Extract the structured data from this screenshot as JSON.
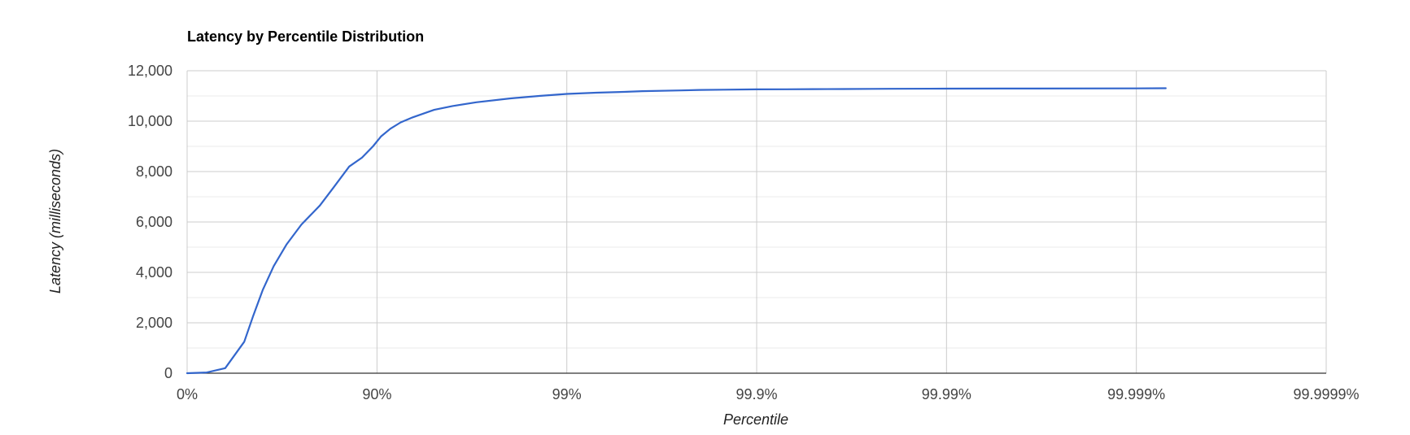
{
  "chart_data": {
    "type": "line",
    "title": "Latency by Percentile Distribution",
    "xlabel": "Percentile",
    "ylabel": "Latency (milliseconds)",
    "x_scale": "log-percentile",
    "x_ticks": [
      "0%",
      "90%",
      "99%",
      "99.9%",
      "99.99%",
      "99.999%",
      "99.9999%"
    ],
    "y_ticks": [
      "0",
      "2,000",
      "4,000",
      "6,000",
      "8,000",
      "10,000",
      "12,000"
    ],
    "ylim": [
      0,
      12000
    ],
    "grid": true,
    "legend": "none",
    "line_color": "#3366cc",
    "series": [
      {
        "x": [
          0,
          21,
          37,
          50,
          55,
          60,
          65,
          70,
          75,
          80,
          83,
          86,
          88,
          89.5,
          90.5,
          91.5,
          92.5,
          93.5,
          95,
          96,
          97,
          98,
          98.6,
          99,
          99.3,
          99.5,
          99.6,
          99.75,
          99.8,
          99.85,
          99.9,
          99.93,
          99.95,
          99.965,
          99.975,
          99.98,
          99.99,
          99.995,
          99.999,
          99.9993
        ],
        "values": [
          0,
          30,
          200,
          1250,
          2250,
          3300,
          4250,
          5100,
          5900,
          6650,
          7350,
          8200,
          8550,
          9000,
          9400,
          9700,
          9950,
          10150,
          10450,
          10600,
          10750,
          10900,
          11000,
          11080,
          11130,
          11160,
          11190,
          11220,
          11240,
          11250,
          11260,
          11265,
          11270,
          11275,
          11280,
          11285,
          11290,
          11295,
          11300,
          11305
        ]
      }
    ]
  }
}
